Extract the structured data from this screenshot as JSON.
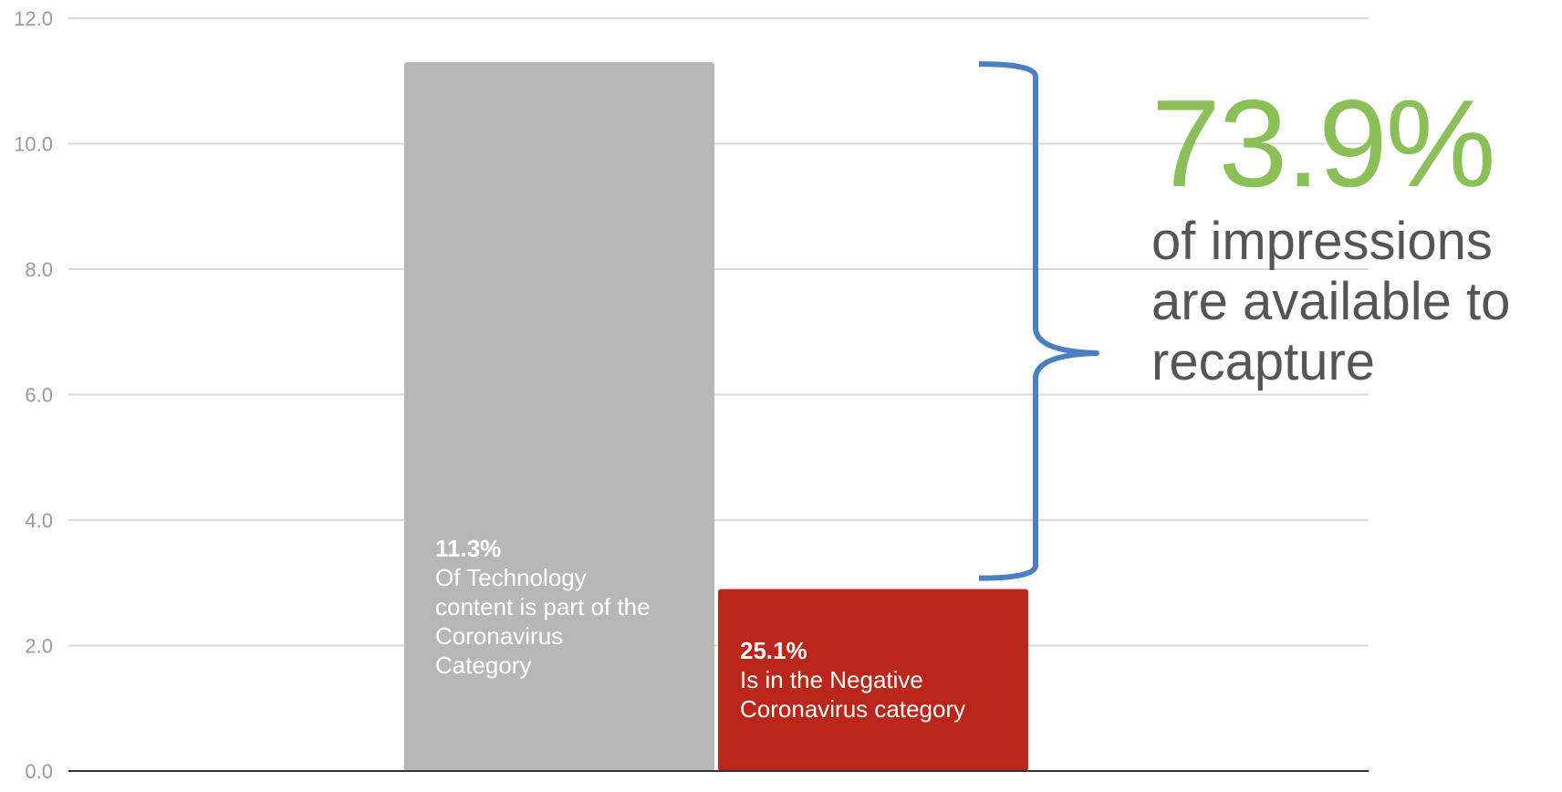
{
  "colors": {
    "bar_technology": "#b7b7b7",
    "bar_negative": "#bb261a",
    "brace": "#4a7fc1",
    "callout_value": "#8bc058",
    "callout_text": "#555555",
    "grid": "#d9d9d9",
    "axis": "#333333"
  },
  "chart_data": {
    "type": "bar",
    "categories": [
      "",
      ""
    ],
    "values": [
      11.3,
      2.9
    ],
    "ylim": [
      0,
      12
    ],
    "yticks": [
      "0.0",
      "2.0",
      "4.0",
      "6.0",
      "8.0",
      "10.0",
      "12.0"
    ],
    "ytick_values": [
      0,
      2,
      4,
      6,
      8,
      10,
      12
    ],
    "grid": true,
    "annotations": [
      {
        "percent": "11.3%",
        "text": "Of Technology\ncontent is part of the\nCoronavirus\nCategory"
      },
      {
        "percent": "25.1%",
        "text": "Is in the Negative\nCoronavirus category"
      }
    ],
    "callout": {
      "value": "73.9%",
      "text": "of impressions\nare available to\nrecapture"
    }
  }
}
